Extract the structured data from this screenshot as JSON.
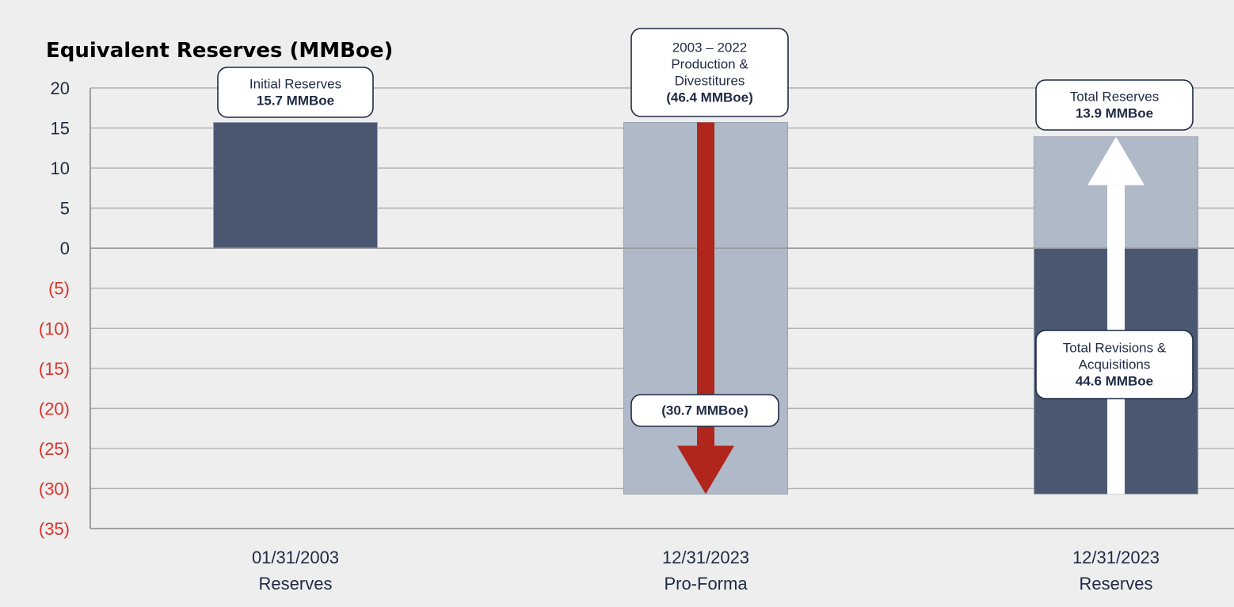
{
  "chart_data": {
    "type": "bar",
    "title": "Equivalent Reserves (MMBoe)",
    "ylim": [
      -35,
      20
    ],
    "yticks": [
      20,
      15,
      10,
      5,
      0,
      -5,
      -10,
      -15,
      -20,
      -25,
      -30,
      -35
    ],
    "ytick_labels": [
      "20",
      "15",
      "10",
      "5",
      "0",
      "(5)",
      "(10)",
      "(15)",
      "(20)",
      "(25)",
      "(30)",
      "(35)"
    ],
    "grid": true,
    "categories": [
      {
        "line1": "01/31/2003",
        "line2": "Reserves"
      },
      {
        "line1": "12/31/2023",
        "line2": "Pro-Forma"
      },
      {
        "line1": "12/31/2023",
        "line2": "Reserves"
      }
    ],
    "bars": [
      {
        "category_index": 0,
        "segments": [
          {
            "from": 0,
            "to": 15.7,
            "color": "#4a5872"
          }
        ]
      },
      {
        "category_index": 1,
        "segments": [
          {
            "from": -30.7,
            "to": 15.7,
            "color": "#b0b9c8"
          }
        ]
      },
      {
        "category_index": 2,
        "segments": [
          {
            "from": 0,
            "to": 13.9,
            "color": "#b0b9c8"
          },
          {
            "from": -30.7,
            "to": 0,
            "color": "#4a5872"
          }
        ]
      }
    ],
    "arrows": [
      {
        "category_index": 1,
        "from": 15.7,
        "to": -30.7,
        "direction": "down",
        "color": "#b0251c"
      },
      {
        "category_index": 2,
        "from": -30.7,
        "to": 13.9,
        "direction": "up",
        "color": "#ffffff"
      }
    ],
    "annotations": [
      {
        "name": "initial-reserves-callout",
        "lines": [
          "Initial Reserves"
        ],
        "bold": [
          "15.7 MMBoe"
        ]
      },
      {
        "name": "production-divestitures-callout",
        "lines": [
          "2003 – 2022",
          "Production &",
          "Divestitures"
        ],
        "bold": [
          "(46.4 MMBoe)"
        ]
      },
      {
        "name": "pro-forma-callout",
        "lines": [],
        "bold": [
          "(30.7 MMBoe)"
        ]
      },
      {
        "name": "total-reserves-callout",
        "lines": [
          "Total Reserves"
        ],
        "bold": [
          "13.9 MMBoe"
        ]
      },
      {
        "name": "revisions-acquisitions-callout",
        "lines": [
          "Total Revisions &",
          "Acquisitions"
        ],
        "bold": [
          "44.6 MMBoe"
        ]
      }
    ],
    "colors": {
      "positive_tick": "#1f2a44",
      "negative_tick": "#d9342b",
      "grid": "#b0b0b0",
      "axis": "#888888"
    }
  }
}
